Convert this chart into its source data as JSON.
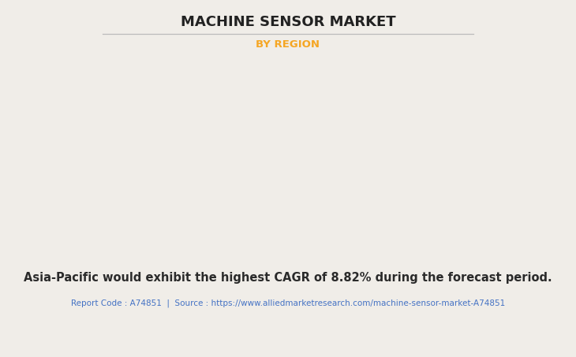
{
  "title": "MACHINE SENSOR MARKET",
  "subtitle": "BY REGION",
  "subtitle_color": "#f5a623",
  "background_color": "#f0ede8",
  "title_fontsize": 13,
  "subtitle_fontsize": 9.5,
  "body_text": "Asia-Pacific would exhibit the highest CAGR of 8.82% during the forecast period.",
  "body_text_fontsize": 10.5,
  "footer_text": "Report Code : A74851  |  Source : https://www.alliedmarketresearch.com/machine-sensor-market-A74851",
  "footer_color": "#4472c4",
  "footer_fontsize": 7.5,
  "land_color": "#8fbc9a",
  "ocean_color": "#f0ede8",
  "border_color": "#a0b8d0",
  "shadow_color": "#999999",
  "highlight_color": "#e8e8e8",
  "usa_color": "#e0e0e0"
}
